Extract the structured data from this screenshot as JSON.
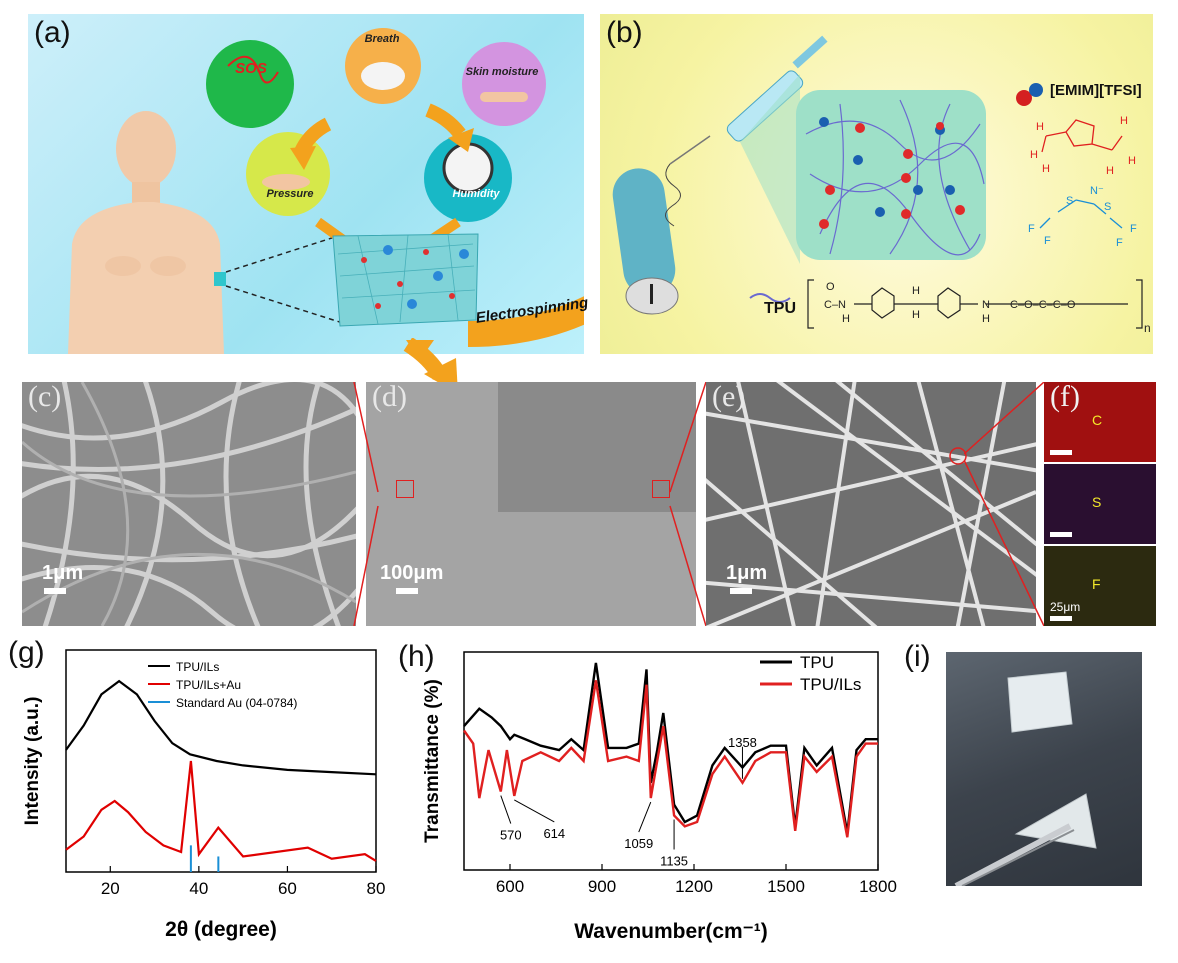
{
  "panels": {
    "a": {
      "label": "(a)",
      "bubbles": {
        "sos": "SOS",
        "breath": "Breath",
        "skin": "Skin moisture",
        "pressure": "Pressure",
        "humidity": "Humidity"
      },
      "arrow_text": "Electrospinning"
    },
    "b": {
      "label": "(b)",
      "il_name": "[EMIM][TFSI]",
      "tpu_label": "TPU"
    },
    "c": {
      "label": "(c)",
      "scale": "1μm"
    },
    "d": {
      "label": "(d)",
      "scale": "100μm"
    },
    "e": {
      "label": "(e)",
      "scale": "1μm"
    },
    "f": {
      "label": "(f)",
      "elements": [
        "C",
        "S",
        "F"
      ],
      "scale": "25μm"
    },
    "g": {
      "label": "(g)"
    },
    "h": {
      "label": "(h)"
    },
    "i": {
      "label": "(i)"
    }
  },
  "chart_data": [
    {
      "type": "line",
      "panel": "g",
      "xlabel": "2θ (degree)",
      "ylabel": "Intensity (a.u.)",
      "xlim": [
        10,
        80
      ],
      "xticks": [
        "20",
        "40",
        "60",
        "80"
      ],
      "legend": [
        "TPU/ILs",
        "TPU/ILs+Au",
        "Standard Au (04-0784)"
      ],
      "legend_position": "top-right",
      "series": [
        {
          "name": "TPU/ILs",
          "color": "#000000",
          "x": [
            10,
            14,
            18,
            22,
            26,
            30,
            34,
            38,
            44,
            50,
            60,
            70,
            80
          ],
          "y": [
            0.55,
            0.66,
            0.8,
            0.86,
            0.8,
            0.68,
            0.58,
            0.53,
            0.5,
            0.48,
            0.46,
            0.45,
            0.44
          ]
        },
        {
          "name": "TPU/ILs+Au",
          "color": "#e00000",
          "x": [
            10,
            14,
            18,
            21,
            24,
            28,
            32,
            36,
            38.2,
            40,
            44.4,
            50,
            64.6,
            70,
            77.5,
            80
          ],
          "y": [
            0.1,
            0.16,
            0.28,
            0.32,
            0.27,
            0.18,
            0.12,
            0.09,
            0.5,
            0.08,
            0.2,
            0.07,
            0.11,
            0.06,
            0.08,
            0.05
          ]
        },
        {
          "name": "Standard Au (04-0784)",
          "color": "#1a8fd6",
          "x": [
            38.2,
            44.4
          ],
          "y": [
            0.12,
            0.07
          ]
        }
      ]
    },
    {
      "type": "line",
      "panel": "h",
      "xlabel": "Wavenumber(cm⁻¹)",
      "ylabel": "Transmittance (%)",
      "xlim": [
        450,
        1800
      ],
      "xticks": [
        "600",
        "900",
        "1200",
        "1500",
        "1800"
      ],
      "legend": [
        "TPU",
        "TPU/ILs"
      ],
      "legend_position": "top-right",
      "annotations": [
        "570",
        "614",
        "1059",
        "1135",
        "1358"
      ],
      "series": [
        {
          "name": "TPU",
          "color": "#000000",
          "x": [
            450,
            500,
            540,
            570,
            600,
            614,
            650,
            700,
            760,
            800,
            840,
            880,
            920,
            980,
            1020,
            1045,
            1059,
            1080,
            1100,
            1135,
            1170,
            1210,
            1260,
            1300,
            1358,
            1400,
            1450,
            1500,
            1530,
            1560,
            1600,
            1650,
            1700,
            1730,
            1760,
            1800
          ],
          "y": [
            0.66,
            0.74,
            0.7,
            0.66,
            0.6,
            0.62,
            0.6,
            0.57,
            0.55,
            0.6,
            0.55,
            0.95,
            0.56,
            0.56,
            0.58,
            0.92,
            0.4,
            0.55,
            0.72,
            0.3,
            0.22,
            0.25,
            0.48,
            0.56,
            0.47,
            0.54,
            0.57,
            0.57,
            0.2,
            0.56,
            0.48,
            0.56,
            0.17,
            0.55,
            0.6,
            0.6
          ]
        },
        {
          "name": "TPU/ILs",
          "color": "#e02020",
          "x": [
            450,
            480,
            500,
            530,
            570,
            590,
            614,
            640,
            700,
            760,
            800,
            840,
            880,
            920,
            980,
            1020,
            1045,
            1059,
            1080,
            1100,
            1135,
            1170,
            1210,
            1260,
            1300,
            1358,
            1400,
            1450,
            1500,
            1530,
            1560,
            1600,
            1650,
            1700,
            1730,
            1760,
            1800
          ],
          "y": [
            0.64,
            0.58,
            0.33,
            0.55,
            0.36,
            0.55,
            0.34,
            0.5,
            0.54,
            0.5,
            0.56,
            0.5,
            0.87,
            0.5,
            0.52,
            0.5,
            0.85,
            0.33,
            0.5,
            0.66,
            0.25,
            0.2,
            0.22,
            0.44,
            0.52,
            0.4,
            0.5,
            0.54,
            0.54,
            0.18,
            0.52,
            0.45,
            0.52,
            0.15,
            0.52,
            0.58,
            0.58
          ]
        }
      ]
    }
  ]
}
